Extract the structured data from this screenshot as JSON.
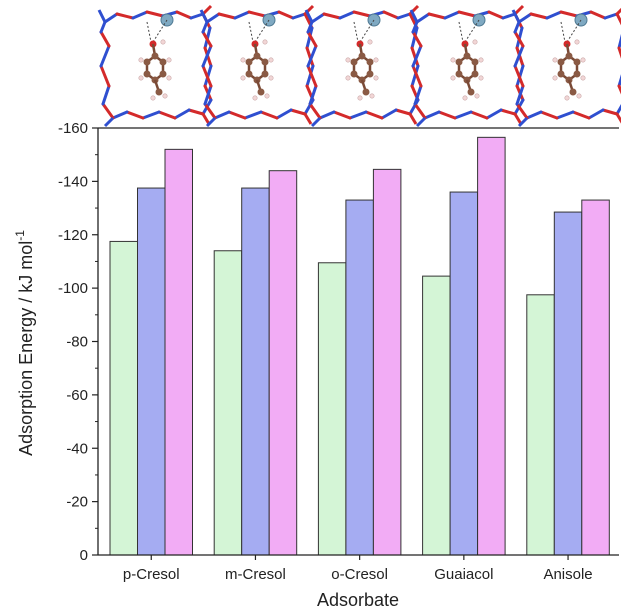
{
  "chart_data": {
    "type": "bar",
    "xlabel": "Adsorbate",
    "ylabel": "Adsorption Energy / kJ mol",
    "ylabel_sup": "-1",
    "ylim": [
      0,
      -160
    ],
    "yticks": [
      0,
      -20,
      -40,
      -60,
      -80,
      -100,
      -120,
      -140,
      -160
    ],
    "ytick_labels": [
      "0",
      "-20",
      "-40",
      "-60",
      "-80",
      "-100",
      "-120",
      "-140",
      "-160"
    ],
    "categories": [
      "p-Cresol",
      "m-Cresol",
      "o-Cresol",
      "Guaiacol",
      "Anisole"
    ],
    "series": [
      {
        "values": [
          -117.5,
          -114,
          -109.5,
          -104.5,
          -97.5
        ]
      },
      {
        "values": [
          -137.5,
          -137.5,
          -133,
          -136,
          -128.5
        ]
      },
      {
        "values": [
          -152,
          -144,
          -144.5,
          -156.5,
          -133
        ]
      }
    ],
    "series_colors": [
      "#d4f5d6",
      "#a5acf2",
      "#f2acf5"
    ],
    "bar_edge_color": "#333333",
    "grid": false,
    "legend": "none",
    "insets": [
      {
        "kind": "molecular-structure",
        "category": "p-Cresol"
      },
      {
        "kind": "molecular-structure",
        "category": "m-Cresol"
      },
      {
        "kind": "molecular-structure",
        "category": "o-Cresol"
      },
      {
        "kind": "molecular-structure",
        "category": "Guaiacol"
      },
      {
        "kind": "molecular-structure",
        "category": "Anisole"
      }
    ]
  }
}
